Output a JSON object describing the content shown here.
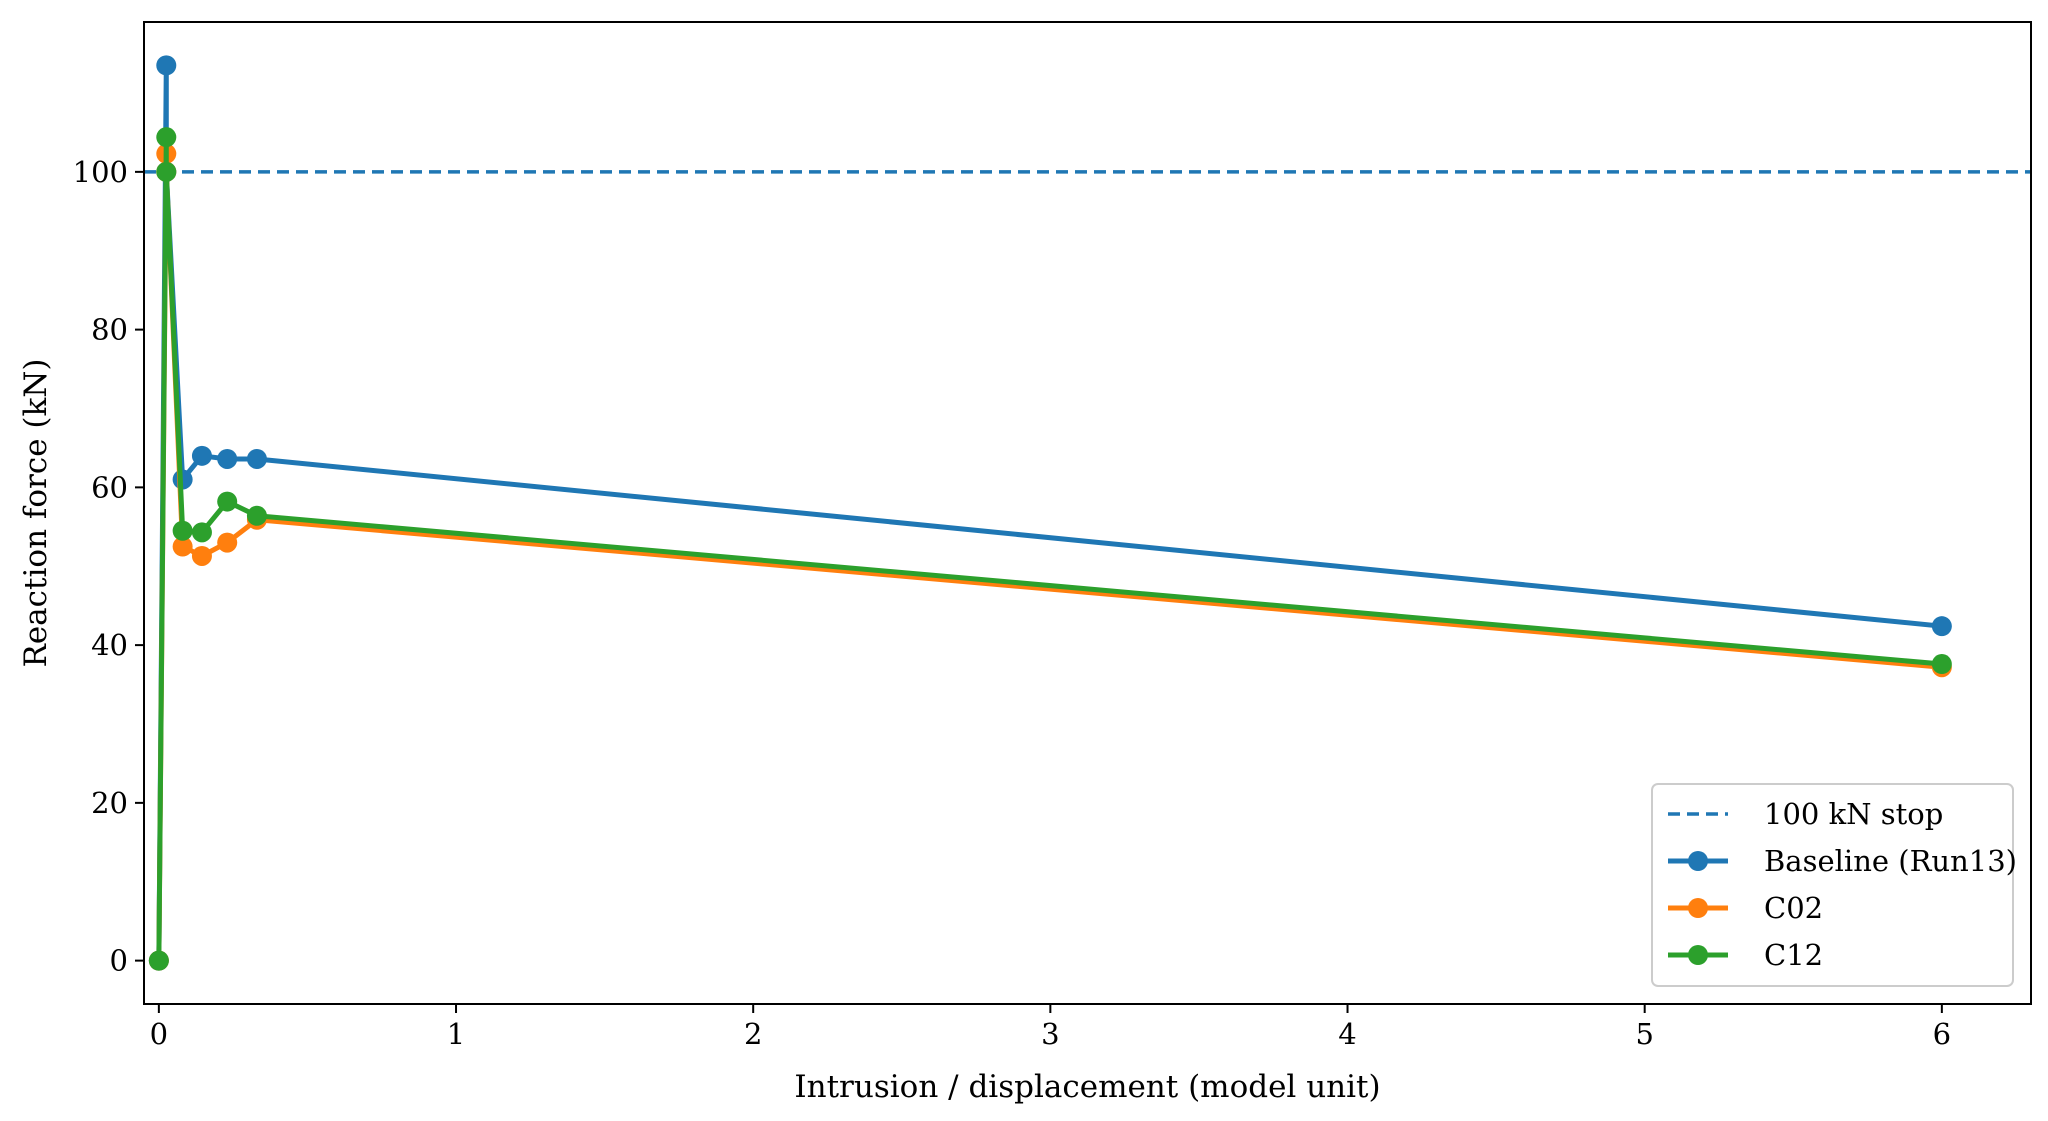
{
  "chart_data": {
    "type": "line",
    "title": "",
    "xlabel": "Intrusion / displacement (model unit)",
    "ylabel": "Reaction force (kN)",
    "xlim": [
      -0.05,
      6.3
    ],
    "ylim": [
      -5.5,
      119
    ],
    "xticks": [
      0,
      1,
      2,
      3,
      4,
      5,
      6
    ],
    "yticks": [
      0,
      20,
      40,
      60,
      80,
      100
    ],
    "grid": false,
    "legend_position": "lower-right",
    "reference_line": {
      "name": "100 kN stop",
      "y": 100,
      "color": "#1f77b4",
      "style": "dashed"
    },
    "series": [
      {
        "name": "Baseline (Run13)",
        "color": "#1f77b4",
        "x": [
          0,
          0.025,
          0.025,
          0.08,
          0.145,
          0.23,
          0.33,
          6.0
        ],
        "y": [
          0,
          113.5,
          100.0,
          61.0,
          64.0,
          63.6,
          63.6,
          42.4
        ]
      },
      {
        "name": "C02",
        "color": "#ff7f0e",
        "x": [
          0,
          0.025,
          0.025,
          0.08,
          0.145,
          0.23,
          0.33,
          6.0
        ],
        "y": [
          0,
          102.3,
          100.0,
          52.5,
          51.3,
          53.0,
          55.9,
          37.2
        ]
      },
      {
        "name": "C12",
        "color": "#2ca02c",
        "x": [
          0,
          0.025,
          0.025,
          0.08,
          0.145,
          0.23,
          0.33,
          6.0
        ],
        "y": [
          0,
          104.4,
          100.0,
          54.5,
          54.3,
          58.2,
          56.4,
          37.6
        ]
      }
    ]
  }
}
